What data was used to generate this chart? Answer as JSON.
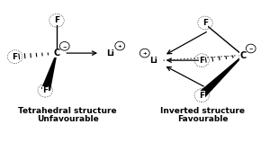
{
  "bg_color": "#ffffff",
  "title1": "Tetrahedral structure",
  "title1b": "Unfavourable",
  "title2": "Inverted structure",
  "title2b": "Favourable",
  "title_fontsize": 6.5,
  "fig_width": 3.0,
  "fig_height": 1.58
}
